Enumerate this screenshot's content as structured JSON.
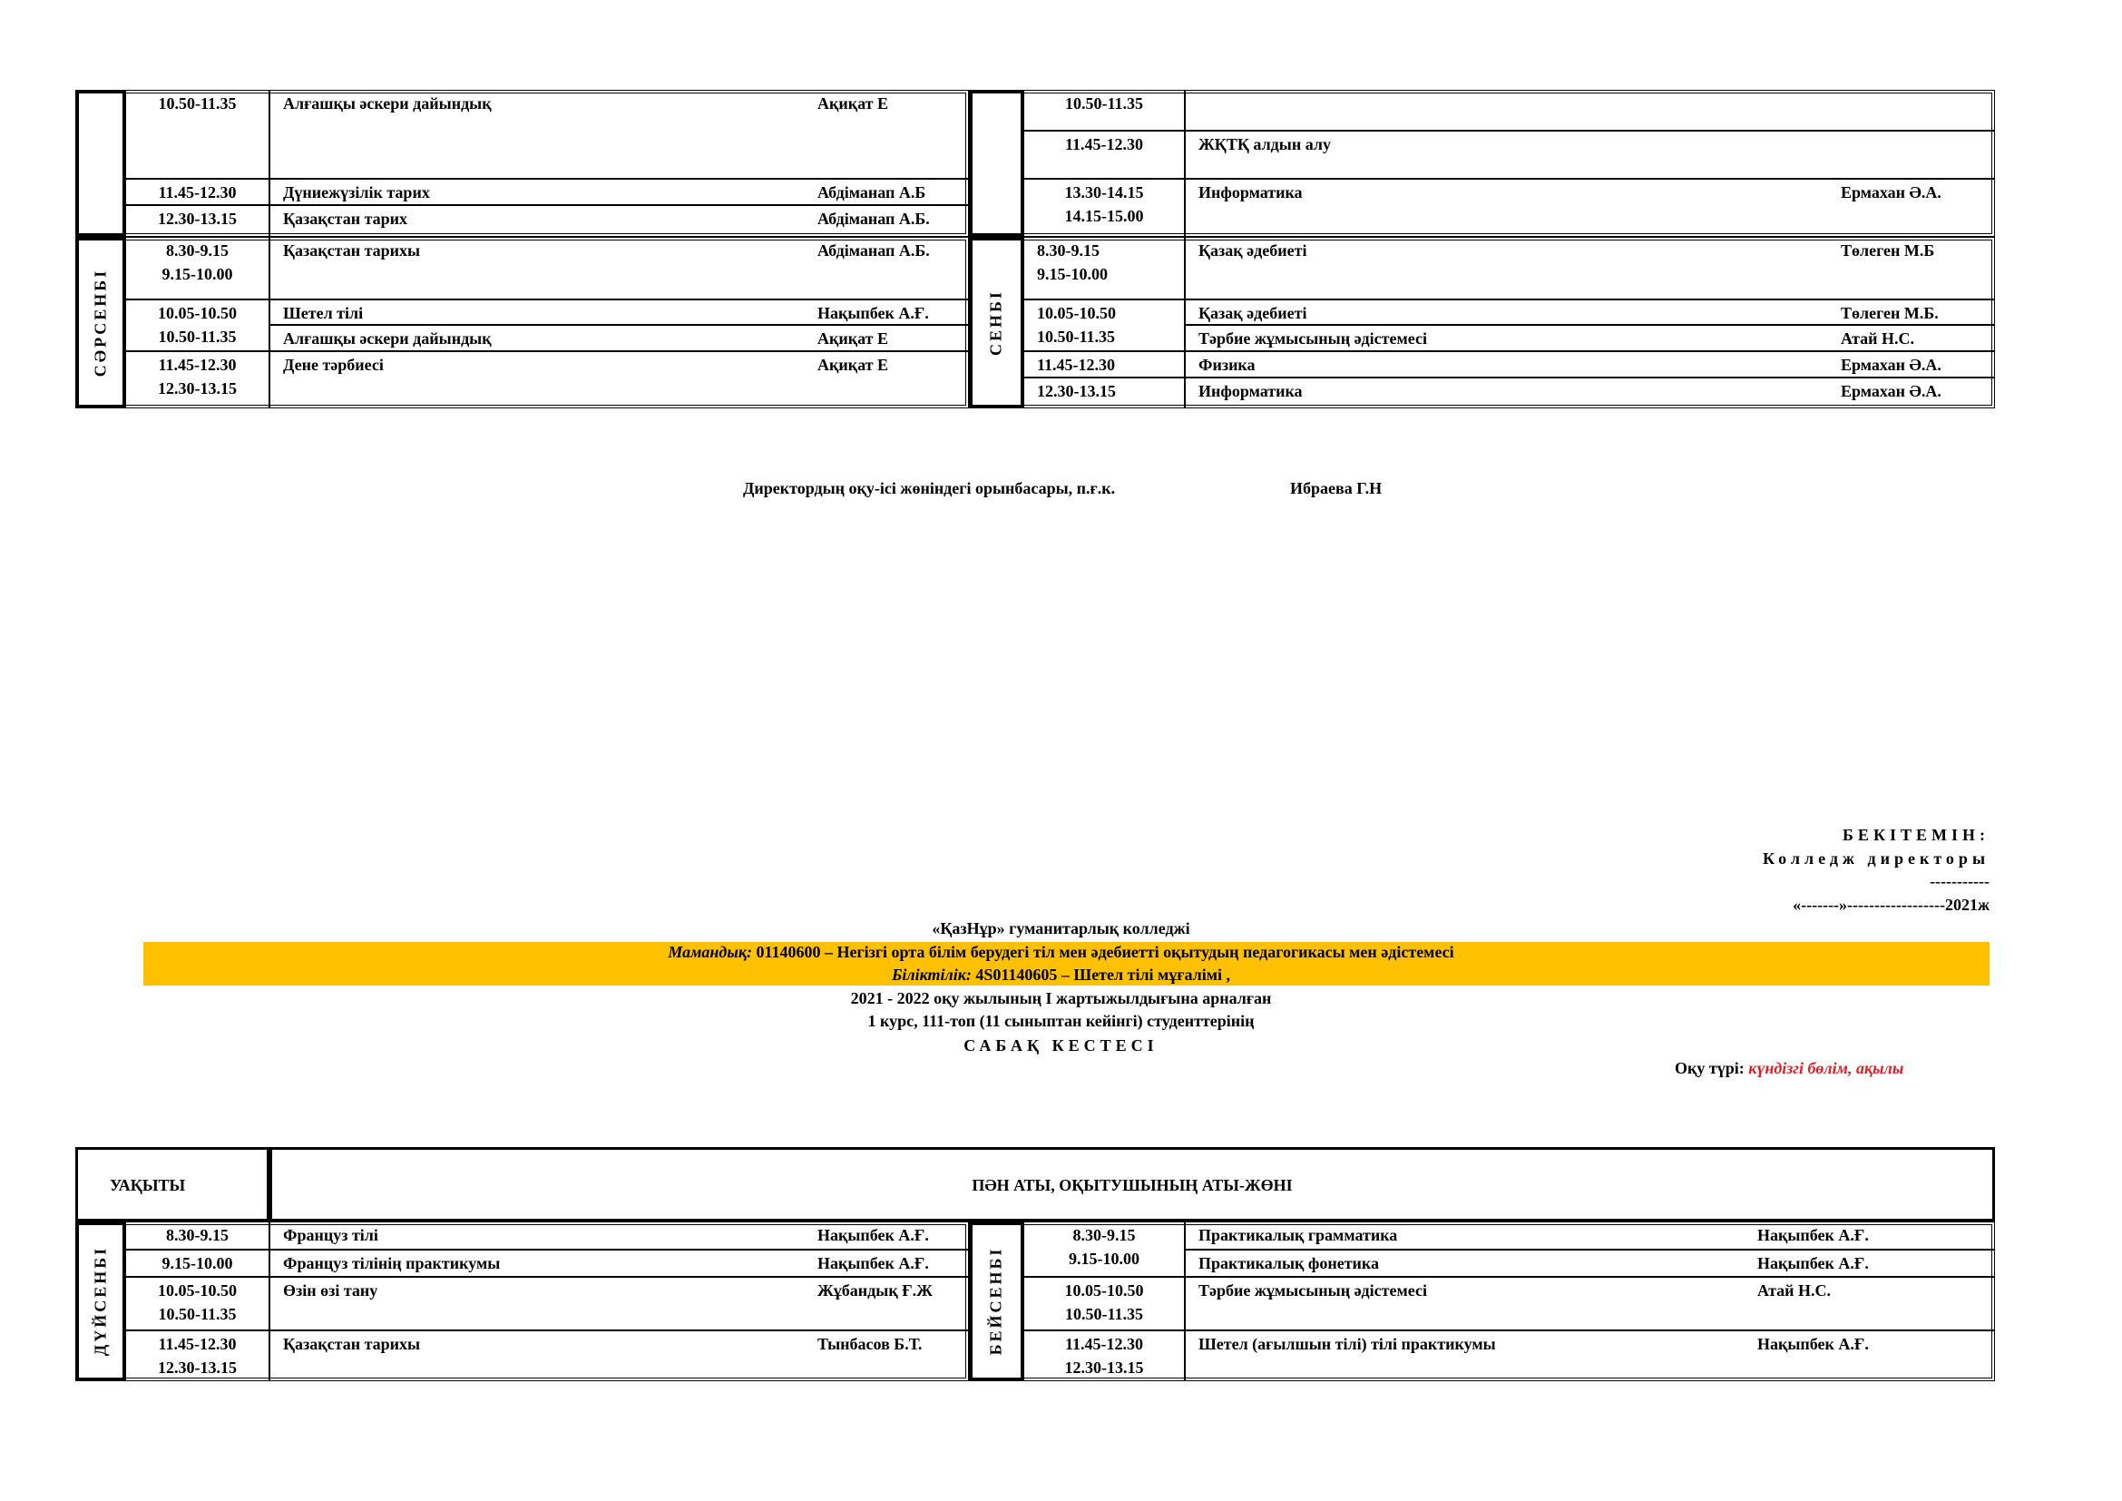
{
  "top_table": {
    "blocks": [
      {
        "day": "",
        "times": [
          [
            "10.50-11.35"
          ],
          [
            "11.45-12.30"
          ],
          [
            "12.30-13.15"
          ]
        ],
        "lessons": [
          {
            "subject": "Алғашқы әскери дайындық",
            "teacher": "Ақиқат Е"
          },
          {
            "subject": "Дүниежүзілік тарих",
            "teacher": "Абдіманап А.Б"
          },
          {
            "subject": "Қазақстан тарих",
            "teacher": "Абдіманап А.Б."
          }
        ]
      },
      {
        "day": "СӘРСЕНБІ",
        "times": [
          [
            "8.30-9.15",
            "9.15-10.00"
          ],
          [
            "10.05-10.50",
            "10.50-11.35"
          ],
          [
            "11.45-12.30",
            "12.30-13.15"
          ]
        ],
        "lessons": [
          {
            "subject": "Қазақстан тарихы",
            "teacher": "Абдіманап А.Б."
          },
          {
            "subject": "Шетел тілі",
            "teacher": "Нақыпбек А.Ғ."
          },
          {
            "subject": "Алғашқы әскери дайындық",
            "teacher": "Ақиқат Е"
          },
          {
            "subject": "Дене тәрбиесі",
            "teacher": "Ақиқат Е"
          }
        ]
      },
      {
        "day": "",
        "times": [
          [
            "10.50-11.35"
          ],
          [
            "11.45-12.30"
          ],
          [
            "13.30-14.15",
            "14.15-15.00"
          ]
        ],
        "lessons": [
          {
            "subject": "",
            "teacher": ""
          },
          {
            "subject": "ЖҚТҚ алдын алу",
            "teacher": ""
          },
          {
            "subject": "Информатика",
            "teacher": "Ермахан Ә.А."
          }
        ]
      },
      {
        "day": "СЕНБІ",
        "times": [
          [
            "8.30-9.15",
            "9.15-10.00"
          ],
          [
            "10.05-10.50",
            "10.50-11.35"
          ],
          [
            "11.45-12.30"
          ],
          [
            "12.30-13.15"
          ]
        ],
        "lessons": [
          {
            "subject": "Қазақ  әдебиеті",
            "teacher": "Төлеген М.Б"
          },
          {
            "subject": "Қазақ  әдебиеті",
            "teacher": "Төлеген М.Б."
          },
          {
            "subject": "Тәрбие жұмысының әдістемесі",
            "teacher": "Атай Н.С."
          },
          {
            "subject": "Физика",
            "teacher": "Ермахан Ә.А."
          },
          {
            "subject": "Информатика",
            "teacher": "Ермахан Ә.А."
          }
        ]
      }
    ]
  },
  "signature": {
    "position": "Директордың оқу-ісі жөніндегі орынбасары, п.ғ.к.",
    "name": "Ибраева Г.Н"
  },
  "approval": {
    "title": "БЕКІТЕМІН:",
    "role": "Колледж директоры",
    "line": "-----------",
    "date": "«-------»------------------2021ж"
  },
  "header": {
    "college": "«ҚазНұр» гуманитарлық колледжі",
    "specialty_label": "Мамандық:",
    "specialty": " 01140600 – Негізгі орта білім берудегі тіл мен әдебиетті оқытудың педагогикасы мен әдістемесі",
    "qualification_label": "Біліктілік:",
    "qualification": " 4S01140605 – Шетел тілі мұғалімі ,",
    "year": "2021 - 2022 оқу жылының I жартыжылдығына арналған",
    "group": "1 курс, 111-топ (11 сыныптан кейінгі) студенттерінің",
    "title": "САБАҚ КЕСТЕСІ",
    "study_form_label": "Оқу түрі:",
    "study_form": " күндізгі бөлім, ақылы",
    "band_color": "#FFC000",
    "study_form_color": "#E31E24"
  },
  "bottom_table": {
    "header": {
      "time": "УАҚЫТЫ",
      "subject": "ПӘН АТЫ, ОҚЫТУШЫНЫҢ АТЫ-ЖӨНІ"
    },
    "blocks": [
      {
        "day": "ДҮЙСЕНБІ",
        "times": [
          [
            "8.30-9.15"
          ],
          [
            "9.15-10.00"
          ],
          [
            "10.05-10.50",
            "10.50-11.35"
          ],
          [
            "11.45-12.30",
            "12.30-13.15"
          ]
        ],
        "lessons": [
          {
            "subject": "Француз тілі",
            "teacher": "Нақыпбек А.Ғ."
          },
          {
            "subject": "Француз тілінің практикумы",
            "teacher": "Нақыпбек А.Ғ."
          },
          {
            "subject": "Өзін өзі тану",
            "teacher": "Жұбандық Ғ.Ж"
          },
          {
            "subject": "Қазақстан тарихы",
            "teacher": "Тынбасов Б.Т."
          }
        ]
      },
      {
        "day": "БЕЙСЕНБІ",
        "times": [
          [
            "8.30-9.15",
            "9.15-10.00"
          ],
          [
            "10.05-10.50",
            "10.50-11.35"
          ],
          [
            "11.45-12.30",
            "12.30-13.15"
          ]
        ],
        "lessons": [
          {
            "subject": "Практикалық грамматика",
            "teacher": "Нақыпбек А.Ғ."
          },
          {
            "subject": "Практикалық фонетика",
            "teacher": "Нақыпбек А.Ғ."
          },
          {
            "subject": "Тәрбие жұмысының әдістемесі",
            "teacher": "Атай Н.С."
          },
          {
            "subject": "Шетел (ағылшын тілі) тілі практикумы",
            "teacher": "Нақыпбек А.Ғ."
          }
        ]
      }
    ]
  }
}
